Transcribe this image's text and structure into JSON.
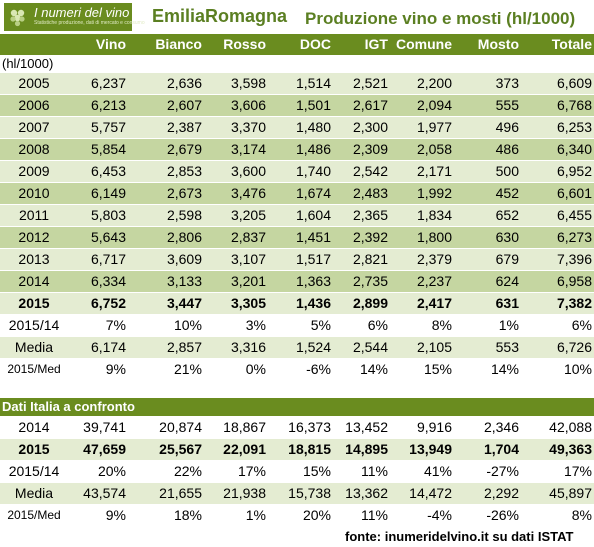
{
  "header": {
    "logo_title": "I numeri del vino",
    "logo_subtitle": "Statistiche produzione, dati di mercato e consumo",
    "region": "EmiliaRomagna",
    "subject": "Produzione vino e mosti (hl/1000)"
  },
  "columns": [
    "Vino",
    "Bianco",
    "Rosso",
    "DOC",
    "IGT",
    "Comune",
    "Mosto",
    "Totale"
  ],
  "unit_label": "(hl/1000)",
  "region_rows": [
    {
      "label": "2005",
      "values": [
        "6,237",
        "2,636",
        "3,598",
        "1,514",
        "2,521",
        "2,200",
        "373",
        "6,609"
      ]
    },
    {
      "label": "2006",
      "values": [
        "6,213",
        "2,607",
        "3,606",
        "1,501",
        "2,617",
        "2,094",
        "555",
        "6,768"
      ]
    },
    {
      "label": "2007",
      "values": [
        "5,757",
        "2,387",
        "3,370",
        "1,480",
        "2,300",
        "1,977",
        "496",
        "6,253"
      ]
    },
    {
      "label": "2008",
      "values": [
        "5,854",
        "2,679",
        "3,174",
        "1,486",
        "2,309",
        "2,058",
        "486",
        "6,340"
      ]
    },
    {
      "label": "2009",
      "values": [
        "6,453",
        "2,853",
        "3,600",
        "1,740",
        "2,542",
        "2,171",
        "500",
        "6,952"
      ]
    },
    {
      "label": "2010",
      "values": [
        "6,149",
        "2,673",
        "3,476",
        "1,674",
        "2,483",
        "1,992",
        "452",
        "6,601"
      ]
    },
    {
      "label": "2011",
      "values": [
        "5,803",
        "2,598",
        "3,205",
        "1,604",
        "2,365",
        "1,834",
        "652",
        "6,455"
      ]
    },
    {
      "label": "2012",
      "values": [
        "5,643",
        "2,806",
        "2,837",
        "1,451",
        "2,392",
        "1,800",
        "630",
        "6,273"
      ]
    },
    {
      "label": "2013",
      "values": [
        "6,717",
        "3,609",
        "3,107",
        "1,517",
        "2,821",
        "2,379",
        "679",
        "7,396"
      ]
    },
    {
      "label": "2014",
      "values": [
        "6,334",
        "3,133",
        "3,201",
        "1,363",
        "2,735",
        "2,237",
        "624",
        "6,958"
      ]
    },
    {
      "label": "2015",
      "values": [
        "6,752",
        "3,447",
        "3,305",
        "1,436",
        "2,899",
        "2,417",
        "631",
        "7,382"
      ]
    }
  ],
  "region_summary": [
    {
      "label": "2015/14",
      "values": [
        "7%",
        "10%",
        "3%",
        "5%",
        "6%",
        "8%",
        "1%",
        "6%"
      ]
    },
    {
      "label": "Media",
      "values": [
        "6,174",
        "2,857",
        "3,316",
        "1,524",
        "2,544",
        "2,105",
        "553",
        "6,726"
      ]
    },
    {
      "label": "2015/Med",
      "values": [
        "9%",
        "21%",
        "0%",
        "-6%",
        "14%",
        "15%",
        "14%",
        "10%"
      ]
    }
  ],
  "italy_section_title": "Dati Italia a confronto",
  "italy_rows": [
    {
      "label": "2014",
      "values": [
        "39,741",
        "20,874",
        "18,867",
        "16,373",
        "13,452",
        "9,916",
        "2,346",
        "42,088"
      ]
    },
    {
      "label": "2015",
      "values": [
        "47,659",
        "25,567",
        "22,091",
        "18,815",
        "14,895",
        "13,949",
        "1,704",
        "49,363"
      ]
    },
    {
      "label": "2015/14",
      "values": [
        "20%",
        "22%",
        "17%",
        "15%",
        "11%",
        "41%",
        "-27%",
        "17%"
      ]
    },
    {
      "label": "Media",
      "values": [
        "43,574",
        "21,655",
        "21,938",
        "15,738",
        "13,362",
        "14,472",
        "2,292",
        "45,897"
      ]
    },
    {
      "label": "2015/Med",
      "values": [
        "9%",
        "18%",
        "1%",
        "20%",
        "11%",
        "-4%",
        "-26%",
        "8%"
      ]
    }
  ],
  "source": "fonte: inumeridelvino.it su dati ISTAT",
  "colors": {
    "accent_green": "#6a8c1f",
    "band_dark": "#c5d6a1",
    "band_light": "#e4ecd2"
  }
}
